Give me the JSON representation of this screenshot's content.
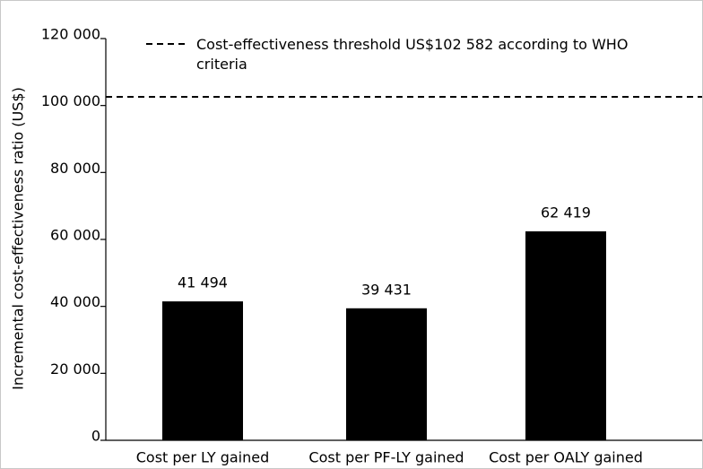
{
  "chart_data": {
    "type": "bar",
    "y_label": "Incremental cost-effectiveness ratio (US$)",
    "categories": [
      "Cost per LY gained",
      "Cost per PF-LY gained",
      "Cost per OALY gained"
    ],
    "values": [
      41494,
      39431,
      62419
    ],
    "value_labels": [
      "41 494",
      "39 431",
      "62 419"
    ],
    "color": "#000000",
    "ylim": [
      0,
      120000
    ],
    "yticks": [
      {
        "value": 0,
        "label": "0"
      },
      {
        "value": 20000,
        "label": "20 000"
      },
      {
        "value": 40000,
        "label": "40 000"
      },
      {
        "value": 60000,
        "label": "60 000"
      },
      {
        "value": 80000,
        "label": "80 000"
      },
      {
        "value": 100000,
        "label": "100 000"
      },
      {
        "value": 120000,
        "label": "120 000"
      }
    ],
    "threshold": {
      "name": "Cost-effectiveness threshold US$102 582 according to WHO criteria",
      "value": 102582
    }
  }
}
